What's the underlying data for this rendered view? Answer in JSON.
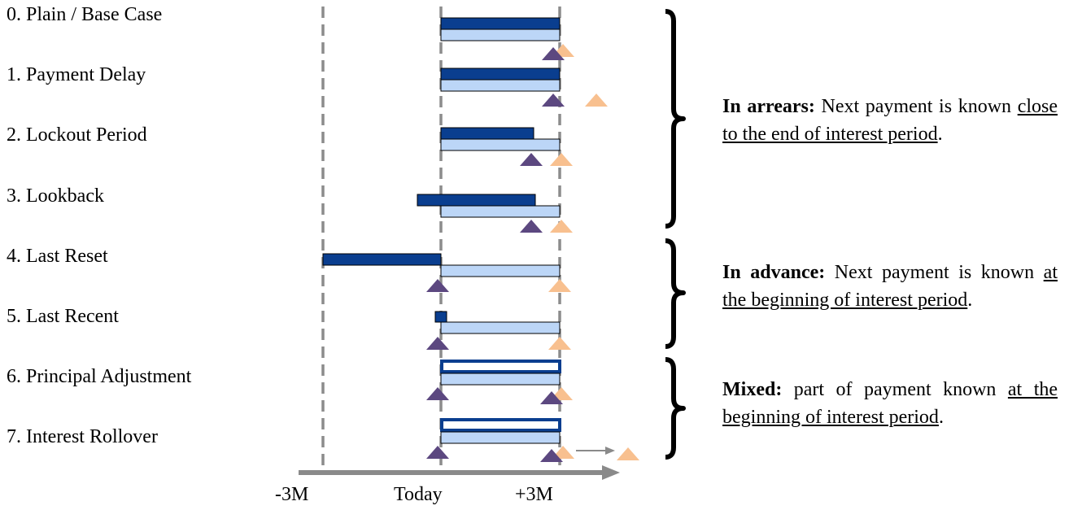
{
  "cases": [
    {
      "label": "0. Plain / Base Case",
      "fixing": "fixing in arrears, observed over the interest period",
      "purple": "+3M",
      "orange": "+3M"
    },
    {
      "label": "1. Payment Delay",
      "fixing": "fixing in arrears, observed over the interest period",
      "purple": "+3M",
      "orange": "after +3M"
    },
    {
      "label": "2. Lockout Period",
      "fixing": "fixing in arrears, ends before period end",
      "purple": "before +3M",
      "orange": "+3M"
    },
    {
      "label": "3. Lookback",
      "fixing": "fixing in arrears, shifted back before today",
      "purple": "before +3M",
      "orange": "+3M"
    },
    {
      "label": "4. Last Reset",
      "fixing": "fixing in advance, previous period -3M to Today",
      "purple": "Today",
      "orange": "+3M"
    },
    {
      "label": "5. Last Recent",
      "fixing": "fixing in advance, single recent fixing at Today",
      "purple": "Today",
      "orange": "+3M"
    },
    {
      "label": "6. Principal Adjustment",
      "fixing": "mixed, outlined fixing bar",
      "purple": "Today and +3M",
      "orange": "+3M"
    },
    {
      "label": "7. Interest Rollover",
      "fixing": "mixed, outlined fixing bar, payment rolled over",
      "purple": "Today and +3M",
      "orange": "+3M rolled to later"
    }
  ],
  "axis": {
    "ticks": [
      "-3M",
      "Today",
      "+3M"
    ]
  },
  "groups": [
    {
      "bold": "In arrears:",
      "text": " Next payment is known ",
      "underlined": "close to the end of interest period",
      "tail": "."
    },
    {
      "bold": "In advance:",
      "text": " Next payment is known ",
      "underlined": "at the beginning of interest period",
      "tail": "."
    },
    {
      "bold": "Mixed:",
      "text": " part of payment known ",
      "underlined": "at the beginning of interest period",
      "tail": "."
    }
  ],
  "colors": {
    "fixing_bar": "#0a3e8f",
    "interest_bar": "#bcd6f7",
    "fixing_triangle": "#5c4880",
    "payment_triangle": "#f8c08f",
    "gridline": "#8c8c8c",
    "axis": "#8a8a8a"
  }
}
